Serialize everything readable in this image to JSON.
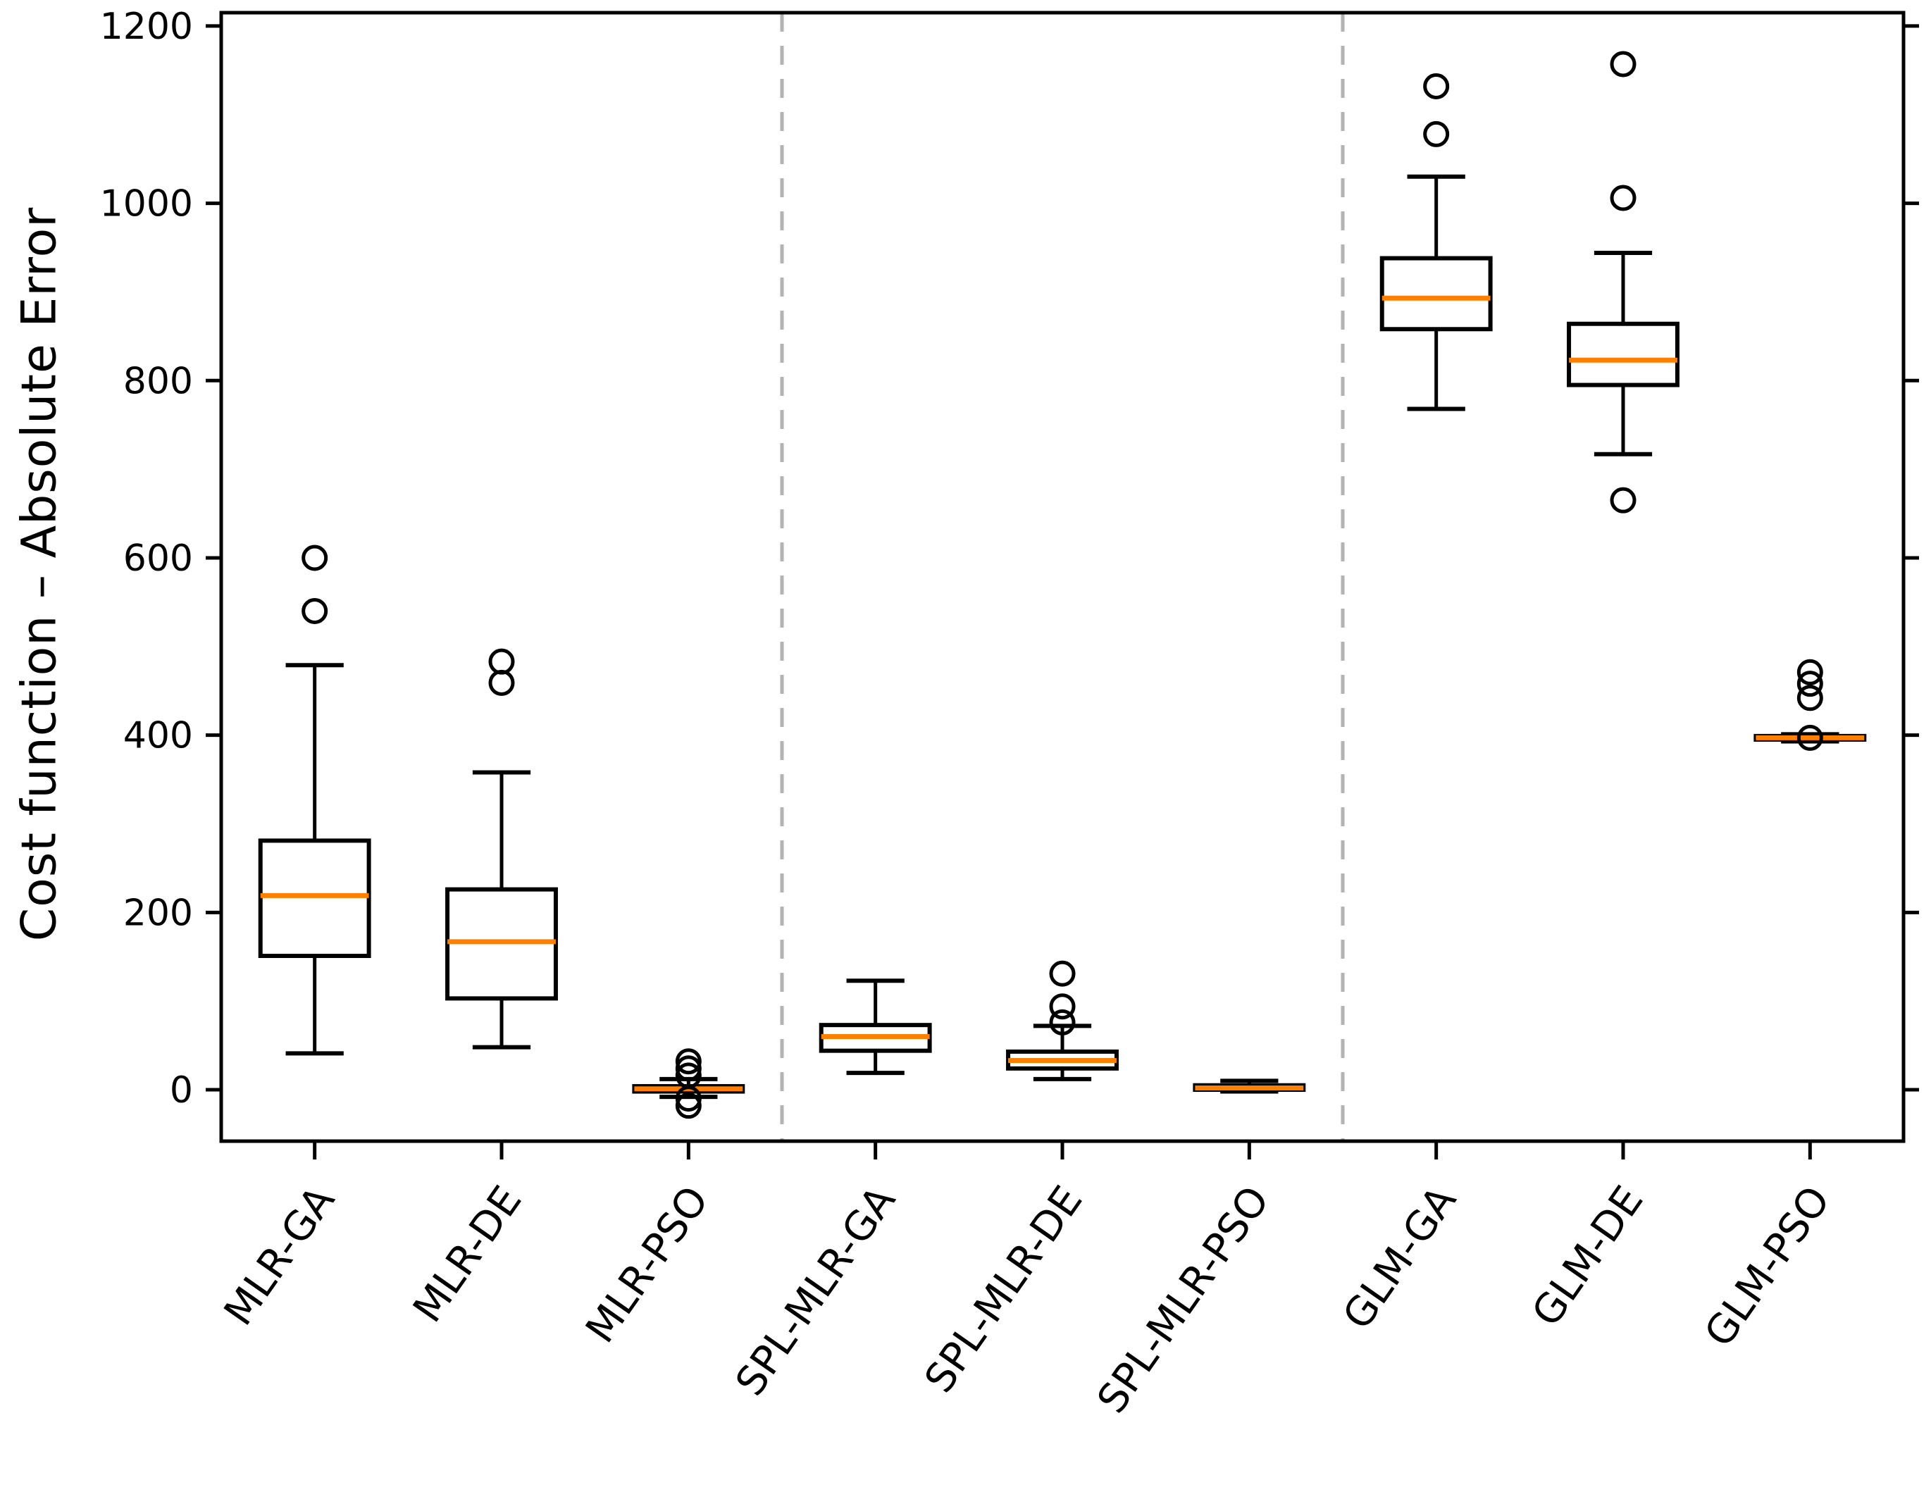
{
  "figure": {
    "background": "#ffffff"
  },
  "chart_data": {
    "type": "boxplot",
    "title": "",
    "xlabel": "",
    "ylabel": "Cost function – Absolute Error",
    "ylim": [
      -58,
      1215
    ],
    "yticks": [
      0,
      200,
      400,
      600,
      800,
      1000,
      1200
    ],
    "grid": false,
    "legend": null,
    "colors": {
      "median": "#ff8000",
      "box": "#000000",
      "whisker": "#000000",
      "outlier": "#000000",
      "separator": "#b3b3b3",
      "text": "#000000",
      "background": "#ffffff"
    },
    "separators_after_index": [
      2,
      5
    ],
    "categories": [
      "MLR-GA",
      "MLR-DE",
      "MLR-PSO",
      "SPL-MLR-GA",
      "SPL-MLR-DE",
      "SPL-MLR-PSO",
      "GLM-GA",
      "GLM-DE",
      "GLM-PSO"
    ],
    "boxes": [
      {
        "label": "MLR-GA",
        "whislo": 41,
        "q1": 151,
        "med": 219,
        "q3": 281,
        "whishi": 479,
        "outliers": [
          600,
          540
        ]
      },
      {
        "label": "MLR-DE",
        "whislo": 48,
        "q1": 103,
        "med": 167,
        "q3": 226,
        "whishi": 358,
        "outliers": [
          483,
          459
        ]
      },
      {
        "label": "MLR-PSO",
        "whislo": -8,
        "q1": -2,
        "med": 1,
        "q3": 4,
        "whishi": 12,
        "outliers": [
          32,
          24,
          16,
          -10,
          -18
        ]
      },
      {
        "label": "SPL-MLR-GA",
        "whislo": 19,
        "q1": 44,
        "med": 60,
        "q3": 73,
        "whishi": 123,
        "outliers": []
      },
      {
        "label": "SPL-MLR-DE",
        "whislo": 12,
        "q1": 24,
        "med": 33,
        "q3": 43,
        "whishi": 72,
        "outliers": [
          131,
          94,
          76
        ]
      },
      {
        "label": "SPL-MLR-PSO",
        "whislo": -2,
        "q1": 0,
        "med": 2,
        "q3": 5,
        "whishi": 10,
        "outliers": []
      },
      {
        "label": "GLM-GA",
        "whislo": 768,
        "q1": 858,
        "med": 893,
        "q3": 938,
        "whishi": 1030,
        "outliers": [
          1132,
          1078
        ]
      },
      {
        "label": "GLM-DE",
        "whislo": 717,
        "q1": 795,
        "med": 823,
        "q3": 864,
        "whishi": 944,
        "outliers": [
          1157,
          1006,
          665
        ]
      },
      {
        "label": "GLM-PSO",
        "whislo": 393,
        "q1": 395,
        "med": 397,
        "q3": 399,
        "whishi": 401,
        "outliers": [
          471,
          458,
          442,
          397
        ]
      }
    ]
  }
}
